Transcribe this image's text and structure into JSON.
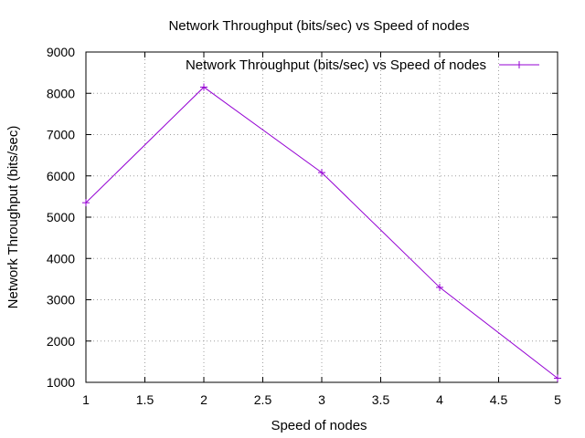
{
  "chart_data": {
    "type": "line",
    "title": "Network Throughput (bits/sec) vs Speed of nodes",
    "xlabel": "Speed of nodes",
    "ylabel": "Network Throughput (bits/sec)",
    "xlim": [
      1,
      5
    ],
    "ylim": [
      1000,
      9000
    ],
    "xticks": [
      "1",
      "1.5",
      "2",
      "2.5",
      "3",
      "3.5",
      "4",
      "4.5",
      "5"
    ],
    "yticks": [
      "1000",
      "2000",
      "3000",
      "4000",
      "5000",
      "6000",
      "7000",
      "8000",
      "9000"
    ],
    "grid": true,
    "legend_position": "top-right",
    "series": [
      {
        "name": "Network Throughput (bits/sec) vs Speed of nodes",
        "color": "#9400d3",
        "marker": "plus",
        "x": [
          1,
          2,
          3,
          4,
          5
        ],
        "y": [
          5350,
          8150,
          6080,
          3300,
          1100
        ]
      }
    ]
  }
}
